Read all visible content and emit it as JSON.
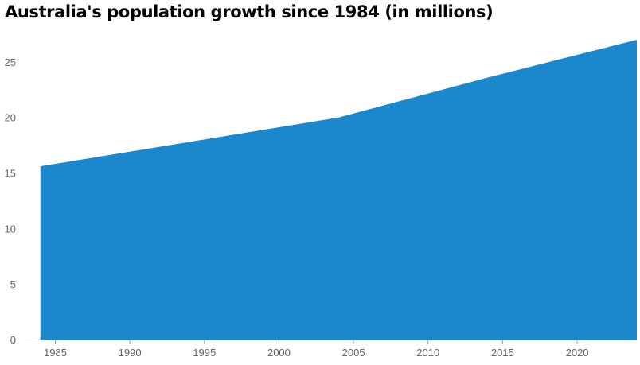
{
  "title": "Australia's population growth since 1984 (in millions)",
  "colors": {
    "area": "#1b87cc",
    "axis": "#9aa0a6",
    "tick_text": "#5f6670",
    "title": "#000000"
  },
  "chart_data": {
    "type": "area",
    "title": "Australia's population growth since 1984 (in millions)",
    "xlabel": "",
    "ylabel": "",
    "x": [
      1984,
      1994,
      2004,
      2014,
      2024
    ],
    "values": [
      15.6,
      17.8,
      20.0,
      23.6,
      27.0
    ],
    "xlim": [
      1983,
      2024
    ],
    "ylim": [
      0,
      27
    ],
    "x_ticks": [
      1985,
      1990,
      1995,
      2000,
      2005,
      2010,
      2015,
      2020
    ],
    "x_tick_labels": [
      "1985",
      "1990",
      "1995",
      "2000",
      "2005",
      "2010",
      "2015",
      "2020"
    ],
    "y_ticks": [
      0,
      5,
      10,
      15,
      20,
      25
    ],
    "y_tick_labels": [
      "0",
      "5",
      "10",
      "15",
      "20",
      "25"
    ],
    "grid": false,
    "legend": "none"
  }
}
